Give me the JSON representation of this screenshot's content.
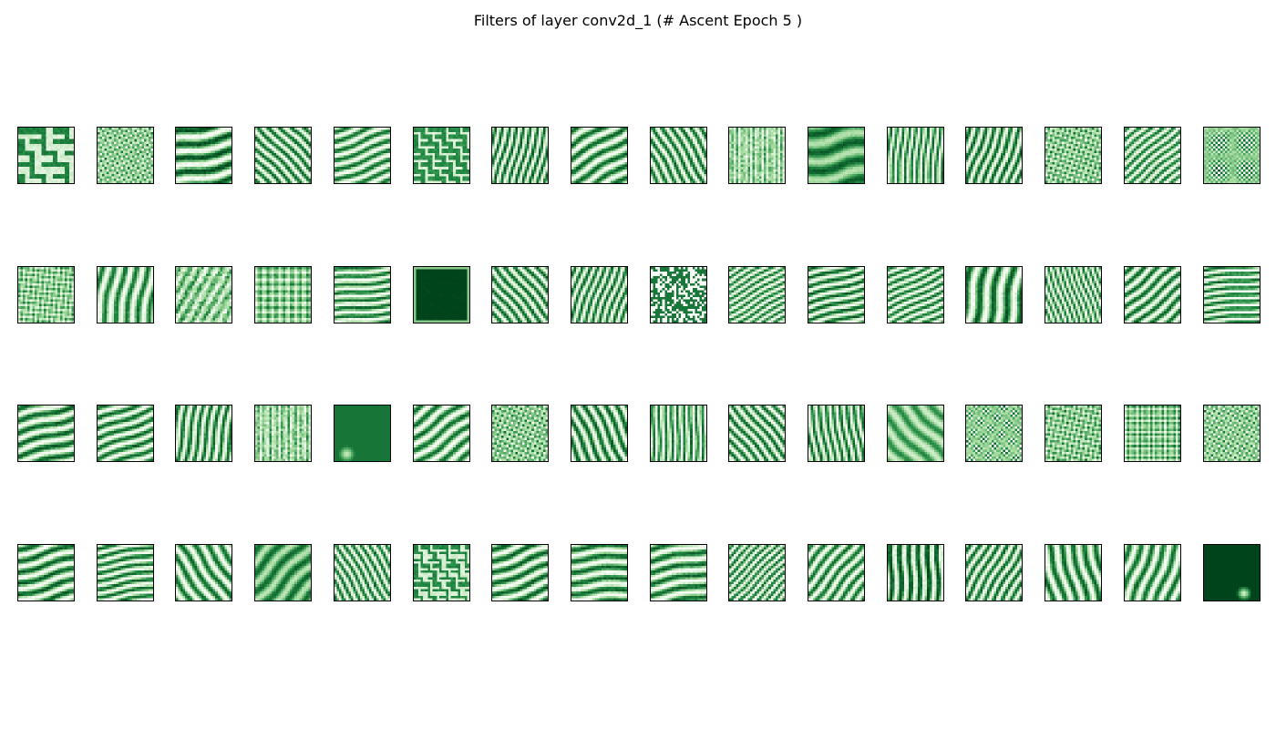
{
  "figure": {
    "title": "Filters of layer conv2d_1 (# Ascent Epoch 5 )"
  },
  "grid": {
    "rows": 4,
    "cols": 16,
    "tile_resolution": 24,
    "colormap": "Greens",
    "colors": {
      "dark": "#00441b",
      "mid": "#238b45",
      "light": "#a1d99b",
      "white": "#f7fcf5",
      "border": "#000000"
    }
  },
  "filters": [
    {
      "pattern": "grid-maze",
      "freq": 5,
      "angle": 0,
      "dark": 0.55
    },
    {
      "pattern": "checker",
      "freq": 9,
      "angle": 20,
      "dark": 0.4
    },
    {
      "pattern": "stripes",
      "freq": 4,
      "angle": 80,
      "dark": 0.7
    },
    {
      "pattern": "stripes",
      "freq": 7,
      "angle": -45,
      "dark": 0.55
    },
    {
      "pattern": "stripes",
      "freq": 6,
      "angle": 70,
      "dark": 0.5
    },
    {
      "pattern": "grid-maze",
      "freq": 8,
      "angle": 0,
      "dark": 0.45
    },
    {
      "pattern": "stripes",
      "freq": 8,
      "angle": 15,
      "dark": 0.6
    },
    {
      "pattern": "stripes",
      "freq": 5,
      "angle": 60,
      "dark": 0.55
    },
    {
      "pattern": "stripes",
      "freq": 7,
      "angle": -30,
      "dark": 0.55
    },
    {
      "pattern": "noise",
      "freq": 10,
      "angle": 0,
      "dark": 0.35
    },
    {
      "pattern": "blob-stripes",
      "freq": 3,
      "angle": 80,
      "dark": 0.75
    },
    {
      "pattern": "stripes",
      "freq": 9,
      "angle": 5,
      "dark": 0.5
    },
    {
      "pattern": "stripes",
      "freq": 7,
      "angle": 20,
      "dark": 0.6
    },
    {
      "pattern": "checker",
      "freq": 10,
      "angle": 30,
      "dark": 0.45
    },
    {
      "pattern": "stripes",
      "freq": 8,
      "angle": 50,
      "dark": 0.45
    },
    {
      "pattern": "checker",
      "freq": 11,
      "angle": 0,
      "dark": 0.5
    },
    {
      "pattern": "checker",
      "freq": 10,
      "angle": 40,
      "dark": 0.4
    },
    {
      "pattern": "stripes",
      "freq": 5,
      "angle": 10,
      "dark": 0.45
    },
    {
      "pattern": "noise",
      "freq": 6,
      "angle": 30,
      "dark": 0.5
    },
    {
      "pattern": "checker",
      "freq": 12,
      "angle": 45,
      "dark": 0.45
    },
    {
      "pattern": "stripes",
      "freq": 7,
      "angle": 85,
      "dark": 0.5
    },
    {
      "pattern": "solid-dark",
      "freq": 1,
      "angle": 0,
      "dark": 0.95
    },
    {
      "pattern": "stripes",
      "freq": 7,
      "angle": -40,
      "dark": 0.55
    },
    {
      "pattern": "stripes",
      "freq": 8,
      "angle": 20,
      "dark": 0.55
    },
    {
      "pattern": "speckle",
      "freq": 14,
      "angle": 0,
      "dark": 0.55
    },
    {
      "pattern": "stripes",
      "freq": 9,
      "angle": 60,
      "dark": 0.45
    },
    {
      "pattern": "stripes",
      "freq": 7,
      "angle": 75,
      "dark": 0.6
    },
    {
      "pattern": "stripes",
      "freq": 8,
      "angle": 65,
      "dark": 0.5
    },
    {
      "pattern": "stripes",
      "freq": 4,
      "angle": 10,
      "dark": 0.6
    },
    {
      "pattern": "stripes",
      "freq": 10,
      "angle": -20,
      "dark": 0.45
    },
    {
      "pattern": "stripes",
      "freq": 6,
      "angle": 50,
      "dark": 0.55
    },
    {
      "pattern": "stripes",
      "freq": 8,
      "angle": 85,
      "dark": 0.55
    },
    {
      "pattern": "stripes",
      "freq": 5,
      "angle": 75,
      "dark": 0.6
    },
    {
      "pattern": "stripes",
      "freq": 6,
      "angle": 70,
      "dark": 0.55
    },
    {
      "pattern": "stripes",
      "freq": 7,
      "angle": 10,
      "dark": 0.55
    },
    {
      "pattern": "noise",
      "freq": 9,
      "angle": 0,
      "dark": 0.4
    },
    {
      "pattern": "solid-spot",
      "freq": 1,
      "angle": 0,
      "dark": 0.8
    },
    {
      "pattern": "stripes",
      "freq": 5,
      "angle": 55,
      "dark": 0.5
    },
    {
      "pattern": "checker",
      "freq": 10,
      "angle": 25,
      "dark": 0.45
    },
    {
      "pattern": "stripes",
      "freq": 6,
      "angle": -25,
      "dark": 0.6
    },
    {
      "pattern": "stripes",
      "freq": 9,
      "angle": 0,
      "dark": 0.5
    },
    {
      "pattern": "stripes",
      "freq": 7,
      "angle": -40,
      "dark": 0.55
    },
    {
      "pattern": "stripes",
      "freq": 8,
      "angle": -10,
      "dark": 0.55
    },
    {
      "pattern": "blob-stripes",
      "freq": 4,
      "angle": -45,
      "dark": 0.55
    },
    {
      "pattern": "checker",
      "freq": 11,
      "angle": 10,
      "dark": 0.45
    },
    {
      "pattern": "checker",
      "freq": 10,
      "angle": 35,
      "dark": 0.45
    },
    {
      "pattern": "checker",
      "freq": 10,
      "angle": 45,
      "dark": 0.5
    },
    {
      "pattern": "checker",
      "freq": 10,
      "angle": 20,
      "dark": 0.4
    },
    {
      "pattern": "stripes",
      "freq": 5,
      "angle": 75,
      "dark": 0.6
    },
    {
      "pattern": "stripes",
      "freq": 7,
      "angle": 80,
      "dark": 0.55
    },
    {
      "pattern": "stripes",
      "freq": 5,
      "angle": -35,
      "dark": 0.5
    },
    {
      "pattern": "blob-stripes",
      "freq": 4,
      "angle": 45,
      "dark": 0.7
    },
    {
      "pattern": "stripes",
      "freq": 8,
      "angle": -30,
      "dark": 0.5
    },
    {
      "pattern": "grid-maze",
      "freq": 9,
      "angle": 0,
      "dark": 0.5
    },
    {
      "pattern": "stripes",
      "freq": 5,
      "angle": 70,
      "dark": 0.6
    },
    {
      "pattern": "stripes",
      "freq": 5,
      "angle": 85,
      "dark": 0.55
    },
    {
      "pattern": "stripes",
      "freq": 5,
      "angle": 80,
      "dark": 0.55
    },
    {
      "pattern": "stripes",
      "freq": 9,
      "angle": 45,
      "dark": 0.5
    },
    {
      "pattern": "stripes",
      "freq": 6,
      "angle": 40,
      "dark": 0.5
    },
    {
      "pattern": "stripes",
      "freq": 6,
      "angle": 0,
      "dark": 0.75
    },
    {
      "pattern": "stripes",
      "freq": 7,
      "angle": 30,
      "dark": 0.55
    },
    {
      "pattern": "stripes",
      "freq": 5,
      "angle": -15,
      "dark": 0.55
    },
    {
      "pattern": "stripes",
      "freq": 5,
      "angle": 20,
      "dark": 0.5
    },
    {
      "pattern": "solid-spot-dark",
      "freq": 1,
      "angle": 0,
      "dark": 0.95
    }
  ]
}
